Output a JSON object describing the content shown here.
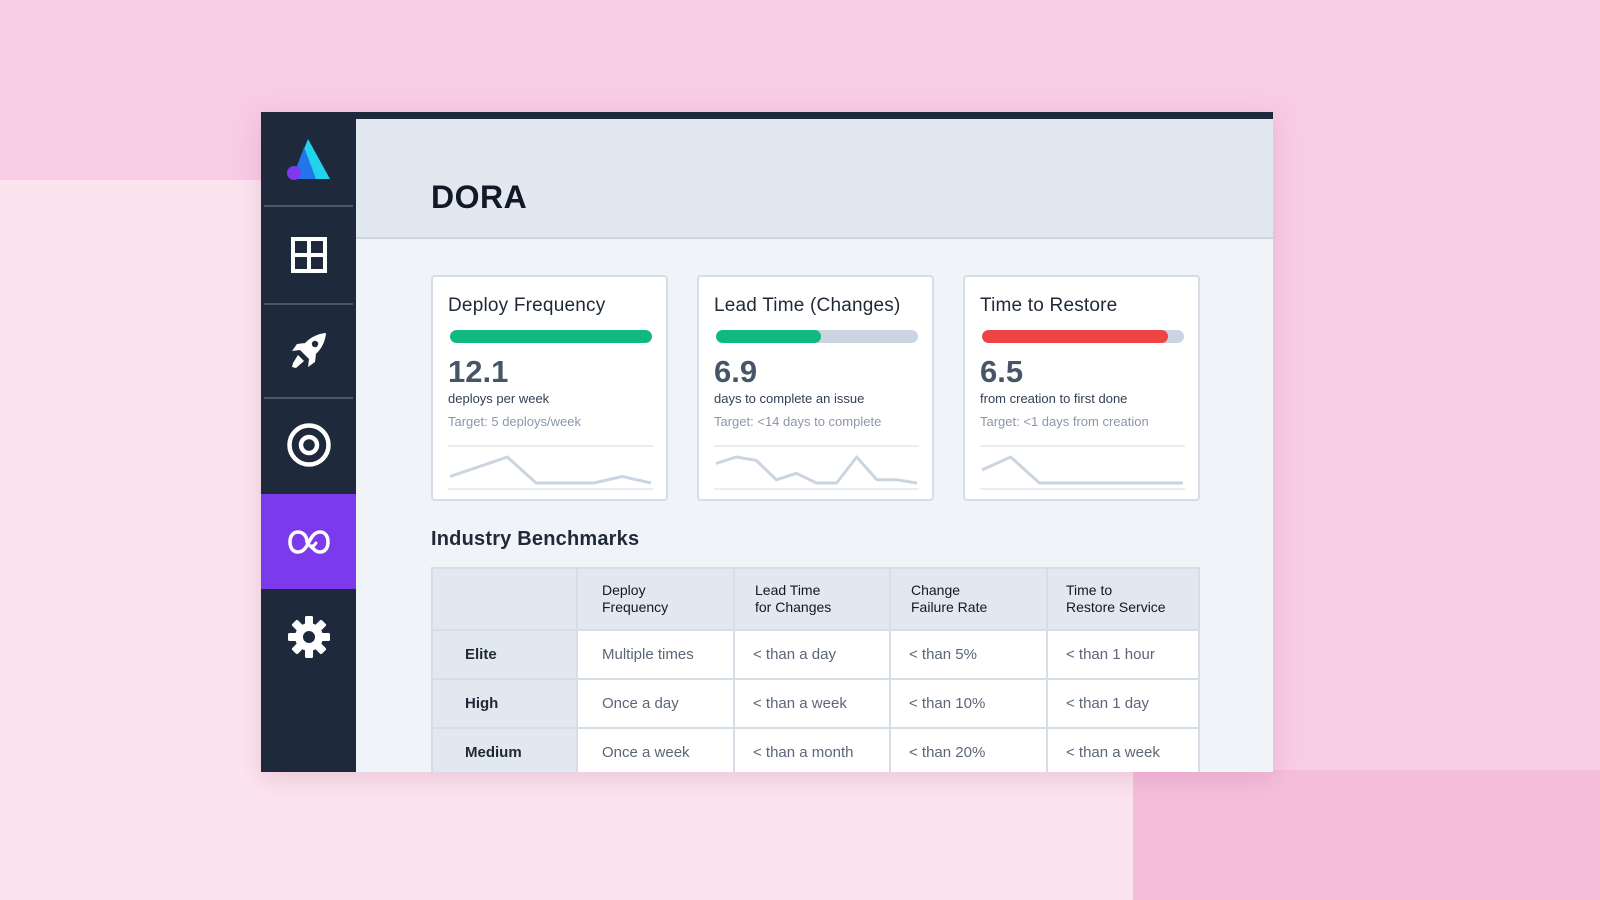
{
  "page": {
    "title": "DORA"
  },
  "sidebar": {
    "items": [
      {
        "name": "dashboard",
        "icon": "grid-icon"
      },
      {
        "name": "deployments",
        "icon": "rocket-icon"
      },
      {
        "name": "goals",
        "icon": "target-icon"
      },
      {
        "name": "cycle",
        "icon": "loop-icon",
        "active": true
      },
      {
        "name": "settings",
        "icon": "gear-icon"
      }
    ],
    "logo": "triangle-logo-icon"
  },
  "colors": {
    "sidebar_bg": "#1e293b",
    "active_item": "#7c3aed",
    "good": "#10b981",
    "bad": "#ef4444",
    "track": "#cbd5e1"
  },
  "metrics": [
    {
      "title": "Deploy Frequency",
      "value": "12.1",
      "subtitle": "deploys per week",
      "target": "Target: 5 deploys/week",
      "progress": 1.0,
      "status": "good",
      "trend": [
        3,
        6,
        9,
        1,
        1,
        1,
        3,
        1
      ]
    },
    {
      "title": "Lead Time (Changes)",
      "value": "6.9",
      "subtitle": "days to complete an issue",
      "target": "Target: <14 days to complete",
      "progress": 0.52,
      "status": "good",
      "trend": [
        6,
        8,
        7,
        1,
        3,
        0,
        0,
        8,
        1,
        1,
        0
      ]
    },
    {
      "title": "Time to Restore",
      "value": "6.5",
      "subtitle": "from creation to first done",
      "target": "Target: <1 days from creation",
      "progress": 0.92,
      "status": "bad",
      "trend": [
        3,
        5,
        1,
        1,
        1,
        1,
        1,
        1
      ]
    }
  ],
  "benchmarks": {
    "title": "Industry Benchmarks",
    "columns": [
      "",
      "Deploy\nFrequency",
      "Lead Time\nfor Changes",
      "Change\nFailure Rate",
      "Time to\nRestore Service"
    ],
    "rows": [
      {
        "label": "Elite",
        "cells": [
          "Multiple times",
          "< than a day",
          "< than 5%",
          "< than 1 hour"
        ]
      },
      {
        "label": "High",
        "cells": [
          "Once a day",
          "< than a week",
          "< than 10%",
          "< than 1 day"
        ]
      },
      {
        "label": "Medium",
        "cells": [
          "Once a week",
          "< than a month",
          "< than 20%",
          "< than a week"
        ]
      }
    ]
  }
}
